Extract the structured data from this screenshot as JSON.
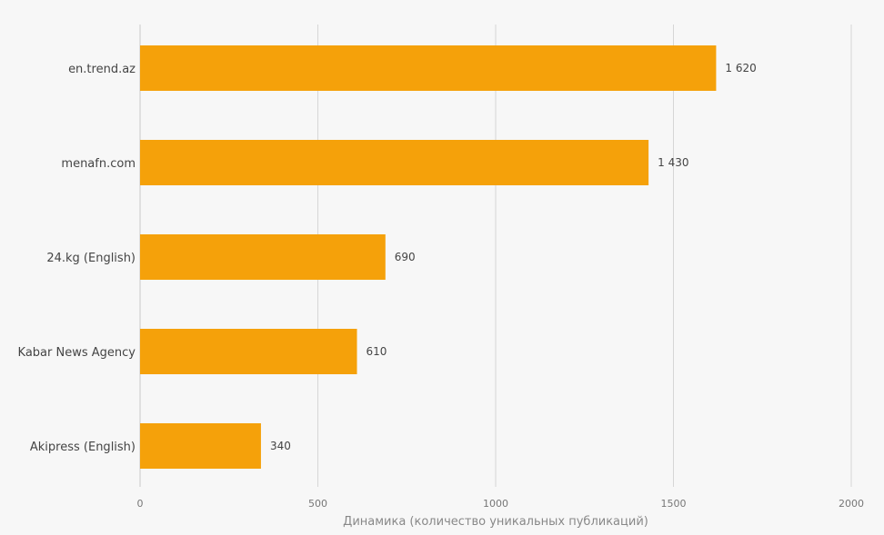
{
  "chart_data": {
    "type": "bar",
    "orientation": "horizontal",
    "categories": [
      "en.trend.az",
      "menafn.com",
      "24.kg (English)",
      "Kabar News Agency",
      "Akipress (English)"
    ],
    "values": [
      1620,
      1430,
      690,
      610,
      340
    ],
    "value_labels": [
      "1 620",
      "1 430",
      "690",
      "610",
      "340"
    ],
    "x_ticks": [
      0,
      500,
      1000,
      1500,
      2000
    ],
    "xlim": [
      0,
      2000
    ],
    "xlabel": "Динамика (количество уникальных публикаций)",
    "ylabel": "",
    "grid": true,
    "legend": "none",
    "bar_color": "#f5a10a"
  }
}
